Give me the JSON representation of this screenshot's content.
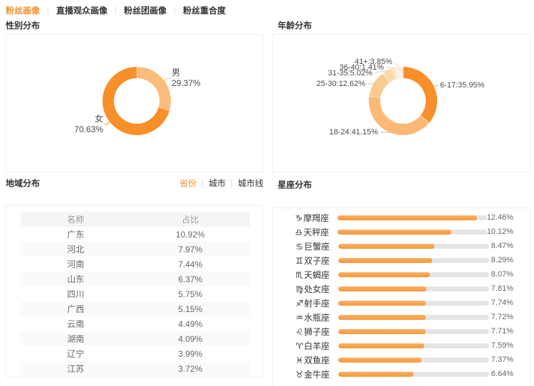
{
  "colors": {
    "accent": "#f7902b",
    "light_orange": "#fbbc7c",
    "bar_track": "#e5e5e5",
    "bar_fill": "#f9a451"
  },
  "tabs": {
    "items": [
      {
        "label": "粉丝画像",
        "active": true
      },
      {
        "label": "直播观众画像",
        "active": false
      },
      {
        "label": "粉丝团画像",
        "active": false
      },
      {
        "label": "粉丝重合度",
        "active": false
      }
    ]
  },
  "chart_data": [
    {
      "id": "gender",
      "type": "pie",
      "title": "性别分布",
      "slices": [
        {
          "label": "男",
          "value": 29.37,
          "pct": "29.37%",
          "color": "#fbbc7c"
        },
        {
          "label": "女",
          "value": 70.63,
          "pct": "70.63%",
          "color": "#f7902b"
        }
      ]
    },
    {
      "id": "age",
      "type": "pie",
      "title": "年龄分布",
      "slices": [
        {
          "label": "6-17",
          "value": 35.95,
          "label_text": "6-17:35.95%",
          "color": "#f7902b"
        },
        {
          "label": "18-24",
          "value": 41.15,
          "label_text": "18-24:41.15%",
          "color": "#fbb877"
        },
        {
          "label": "25-30",
          "value": 12.62,
          "label_text": "25-30:12.62%",
          "color": "#faca90"
        },
        {
          "label": "31-35",
          "value": 5.02,
          "label_text": "31-35:5.02%",
          "color": "#fbd9af"
        },
        {
          "label": "36-40",
          "value": 1.41,
          "label_text": "36-40:1.41%",
          "color": "#fce4c8"
        },
        {
          "label": "41+",
          "value": 3.85,
          "label_text": "41+:3.85%",
          "color": "#fdeede"
        }
      ]
    },
    {
      "id": "region",
      "type": "table",
      "title": "地域分布",
      "tabs": [
        {
          "label": "省份",
          "active": true
        },
        {
          "label": "城市",
          "active": false
        },
        {
          "label": "城市线",
          "active": false
        }
      ],
      "columns": [
        "名称",
        "占比"
      ],
      "rows": [
        [
          "广东",
          "10.92%"
        ],
        [
          "河北",
          "7.97%"
        ],
        [
          "河南",
          "7.44%"
        ],
        [
          "山东",
          "6.37%"
        ],
        [
          "四川",
          "5.75%"
        ],
        [
          "广西",
          "5.15%"
        ],
        [
          "云南",
          "4.49%"
        ],
        [
          "湖南",
          "4.09%"
        ],
        [
          "辽宁",
          "3.99%"
        ],
        [
          "江苏",
          "3.72%"
        ]
      ]
    },
    {
      "id": "zodiac",
      "type": "bar",
      "title": "星座分布",
      "xlim": [
        0,
        13.3
      ],
      "items": [
        {
          "icon": "♑",
          "name": "摩羯座",
          "value": 12.46,
          "pct": "12.46%"
        },
        {
          "icon": "♎",
          "name": "天秤座",
          "value": 10.12,
          "pct": "10.12%"
        },
        {
          "icon": "♋",
          "name": "巨蟹座",
          "value": 8.47,
          "pct": "8.47%"
        },
        {
          "icon": "♊",
          "name": "双子座",
          "value": 8.29,
          "pct": "8.29%"
        },
        {
          "icon": "♏",
          "name": "天蝎座",
          "value": 8.07,
          "pct": "8.07%"
        },
        {
          "icon": "♍",
          "name": "处女座",
          "value": 7.81,
          "pct": "7.81%"
        },
        {
          "icon": "♐",
          "name": "射手座",
          "value": 7.74,
          "pct": "7.74%"
        },
        {
          "icon": "♒",
          "name": "水瓶座",
          "value": 7.72,
          "pct": "7.72%"
        },
        {
          "icon": "♌",
          "name": "狮子座",
          "value": 7.71,
          "pct": "7.71%"
        },
        {
          "icon": "♈",
          "name": "白羊座",
          "value": 7.59,
          "pct": "7.59%"
        },
        {
          "icon": "♓",
          "name": "双鱼座",
          "value": 7.37,
          "pct": "7.37%"
        },
        {
          "icon": "♉",
          "name": "金牛座",
          "value": 6.64,
          "pct": "6.64%"
        }
      ]
    }
  ]
}
